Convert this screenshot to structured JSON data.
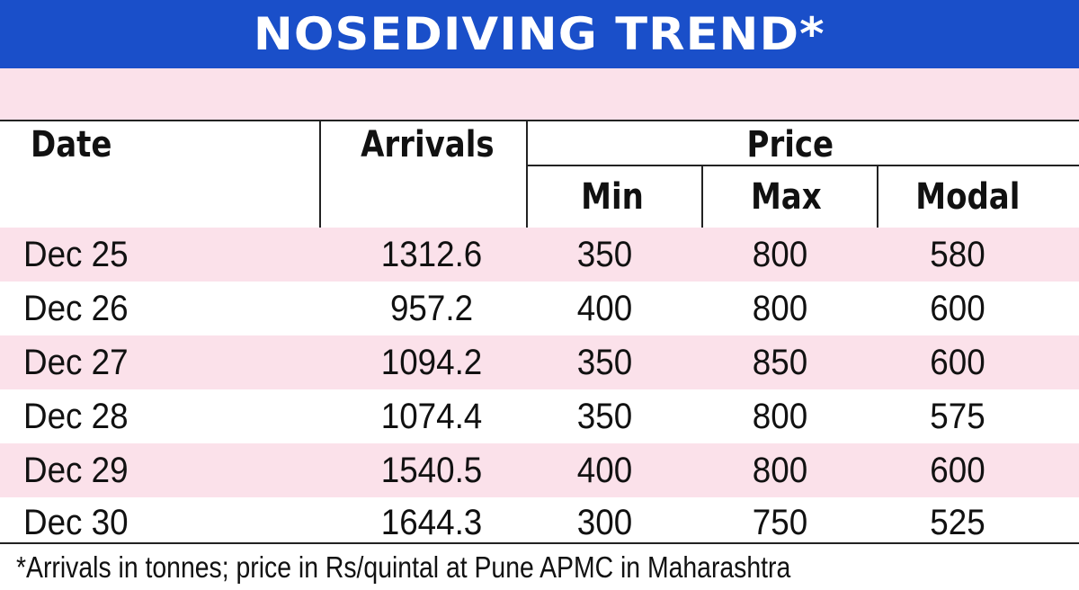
{
  "title": "NOSEDIVING TREND*",
  "table": {
    "headers": {
      "date": "Date",
      "arrivals": "Arrivals",
      "price": "Price",
      "min": "Min",
      "max": "Max",
      "modal": "Modal"
    },
    "rows": [
      {
        "date": "Dec 25",
        "arrivals": "1312.6",
        "min": "350",
        "max": "800",
        "modal": "580"
      },
      {
        "date": "Dec 26",
        "arrivals": "957.2",
        "min": "400",
        "max": "800",
        "modal": "600"
      },
      {
        "date": "Dec 27",
        "arrivals": "1094.2",
        "min": "350",
        "max": "850",
        "modal": "600"
      },
      {
        "date": "Dec 28",
        "arrivals": "1074.4",
        "min": "350",
        "max": "800",
        "modal": "575"
      },
      {
        "date": "Dec 29",
        "arrivals": "1540.5",
        "min": "400",
        "max": "800",
        "modal": "600"
      },
      {
        "date": "Dec 30",
        "arrivals": "1644.3",
        "min": "300",
        "max": "750",
        "modal": "525"
      }
    ]
  },
  "footnote": "*Arrivals in tonnes; price in Rs/quintal at Pune APMC in Maharashtra",
  "colors": {
    "title_bg": "#1a4fc9",
    "stripe": "#fbe1ea"
  }
}
